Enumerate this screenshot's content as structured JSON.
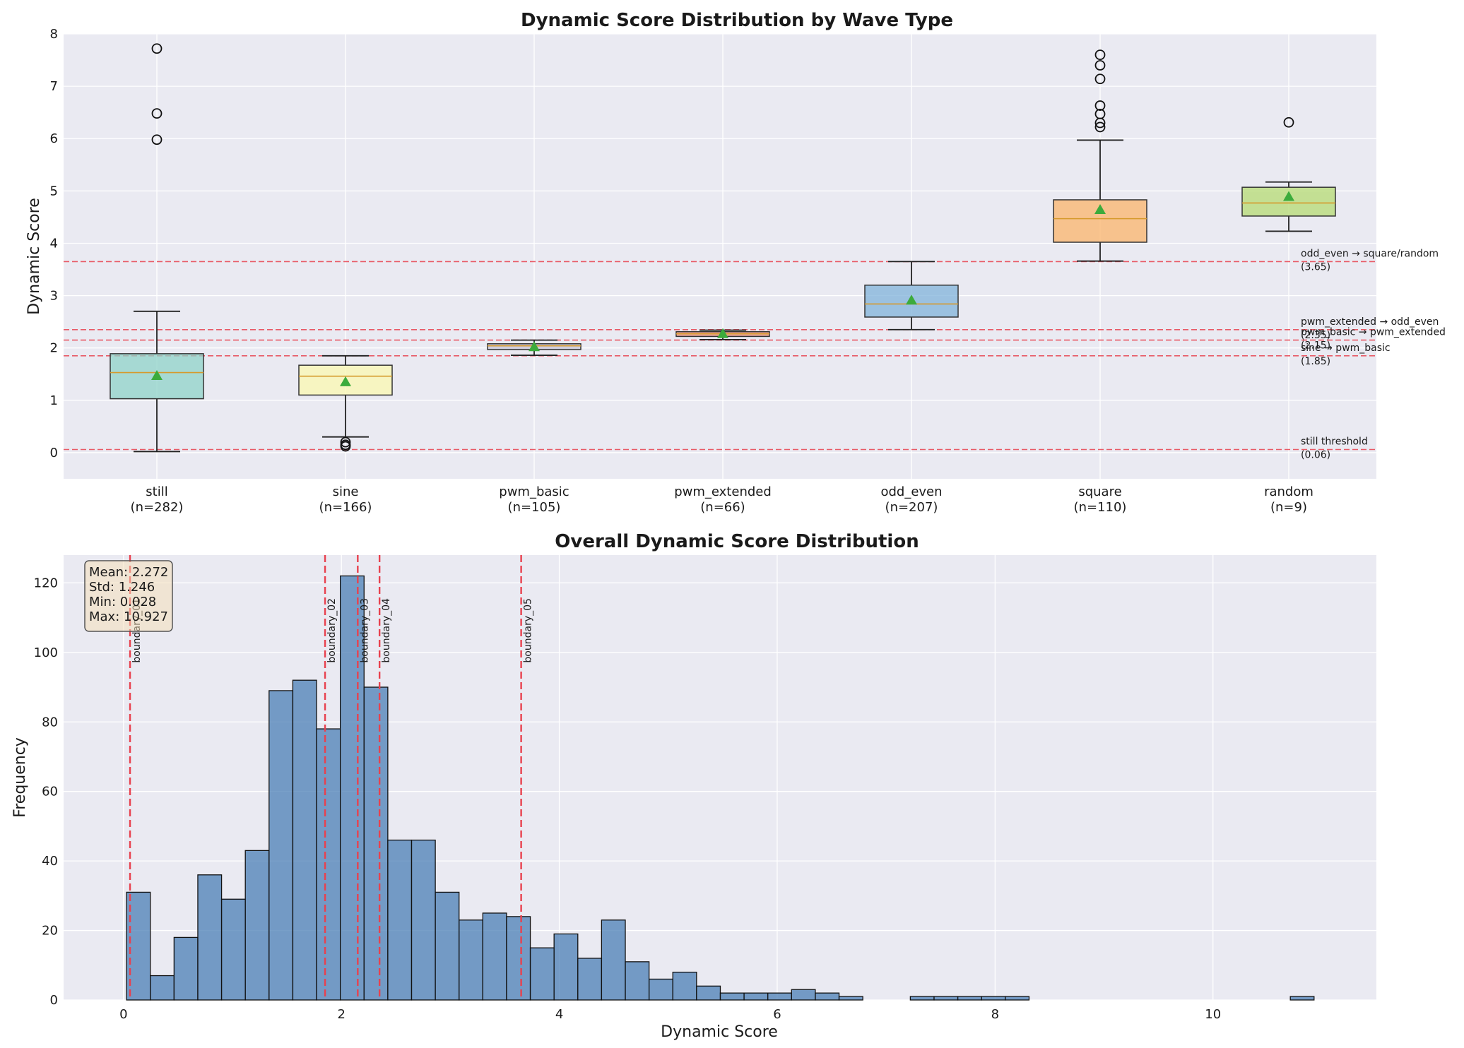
{
  "colors": {
    "panel_bg": "#eaeaf2",
    "grid": "#ffffff",
    "threshold": "#e8414e",
    "hist_fill": "#4b7fb5",
    "mean_marker": "#3cab3c",
    "median_line": "#d69a2c",
    "box_colors": [
      "#8fd3c8",
      "#fbf8b0",
      "#c4c1d6",
      "#f0917f",
      "#80b3d9",
      "#fbb46b",
      "#b6db73"
    ]
  },
  "chart_data": [
    {
      "type": "box",
      "title": "Dynamic Score Distribution by Wave Type",
      "xlabel": "",
      "ylabel": "Dynamic Score",
      "ylim": [
        -0.5,
        8.0
      ],
      "yticks": [
        0,
        1,
        2,
        3,
        4,
        5,
        6,
        7,
        8
      ],
      "grid": true,
      "series": [
        {
          "category": "still",
          "count_label": "(n=282)",
          "whisker_low": 0.02,
          "q1": 1.03,
          "median": 1.53,
          "q3": 1.89,
          "whisker_high": 2.7,
          "mean": 1.47,
          "outliers": [
            7.72,
            6.48,
            5.98
          ]
        },
        {
          "category": "sine",
          "count_label": "(n=166)",
          "whisker_low": 0.3,
          "q1": 1.1,
          "median": 1.46,
          "q3": 1.67,
          "whisker_high": 1.85,
          "mean": 1.35,
          "outliers": [
            0.2,
            0.15,
            0.12
          ]
        },
        {
          "category": "pwm_basic",
          "count_label": "(n=105)",
          "whisker_low": 1.86,
          "q1": 1.97,
          "median": 2.04,
          "q3": 2.08,
          "whisker_high": 2.15,
          "mean": 2.02,
          "outliers": []
        },
        {
          "category": "pwm_extended",
          "count_label": "(n=66)",
          "whisker_low": 2.16,
          "q1": 2.22,
          "median": 2.27,
          "q3": 2.31,
          "whisker_high": 2.34,
          "mean": 2.27,
          "outliers": []
        },
        {
          "category": "odd_even",
          "count_label": "(n=207)",
          "whisker_low": 2.35,
          "q1": 2.59,
          "median": 2.84,
          "q3": 3.2,
          "whisker_high": 3.65,
          "mean": 2.91,
          "outliers": []
        },
        {
          "category": "square",
          "count_label": "(n=110)",
          "whisker_low": 3.66,
          "q1": 4.02,
          "median": 4.47,
          "q3": 4.83,
          "whisker_high": 5.97,
          "mean": 4.64,
          "outliers": [
            7.6,
            7.4,
            7.14,
            6.63,
            6.47,
            6.3,
            6.22
          ]
        },
        {
          "category": "random",
          "count_label": "(n=9)",
          "whisker_low": 4.23,
          "q1": 4.52,
          "median": 4.77,
          "q3": 5.07,
          "whisker_high": 5.17,
          "mean": 4.89,
          "outliers": [
            6.31
          ]
        }
      ],
      "thresholds": [
        {
          "value": 3.65,
          "label": "odd_even → square/random",
          "value_label": "(3.65)"
        },
        {
          "value": 2.35,
          "label": "pwm_extended → odd_even",
          "value_label": "(2.35)"
        },
        {
          "value": 2.15,
          "label": "pwm_basic → pwm_extended",
          "value_label": "(2.15)"
        },
        {
          "value": 1.85,
          "label": "sine → pwm_basic",
          "value_label": "(1.85)"
        },
        {
          "value": 0.06,
          "label": "still threshold",
          "value_label": "(0.06)"
        }
      ]
    },
    {
      "type": "histogram",
      "title": "Overall Dynamic Score Distribution",
      "xlabel": "Dynamic Score",
      "ylabel": "Frequency",
      "xlim": [
        -0.55,
        11.5
      ],
      "ylim": [
        0,
        128
      ],
      "xticks": [
        0,
        2,
        4,
        6,
        8,
        10
      ],
      "yticks": [
        0,
        20,
        40,
        60,
        80,
        100,
        120
      ],
      "grid": true,
      "bin_start": 0.028,
      "bin_width": 0.218,
      "counts": [
        31,
        7,
        18,
        36,
        29,
        43,
        89,
        92,
        78,
        122,
        90,
        46,
        46,
        31,
        23,
        25,
        24,
        15,
        19,
        12,
        23,
        11,
        6,
        8,
        4,
        2,
        2,
        2,
        3,
        2,
        1,
        0,
        0,
        1,
        1,
        1,
        1,
        1,
        0,
        0,
        0,
        0,
        0,
        0,
        0,
        0,
        0,
        0,
        0,
        1
      ],
      "boundaries": [
        {
          "value": 0.06,
          "label": "boundary_01"
        },
        {
          "value": 1.85,
          "label": "boundary_02"
        },
        {
          "value": 2.15,
          "label": "boundary_03"
        },
        {
          "value": 2.35,
          "label": "boundary_04"
        },
        {
          "value": 3.65,
          "label": "boundary_05"
        }
      ],
      "stats": [
        "Mean: 2.272",
        "Std: 1.246",
        "Min: 0.028",
        "Max: 10.927"
      ]
    }
  ]
}
